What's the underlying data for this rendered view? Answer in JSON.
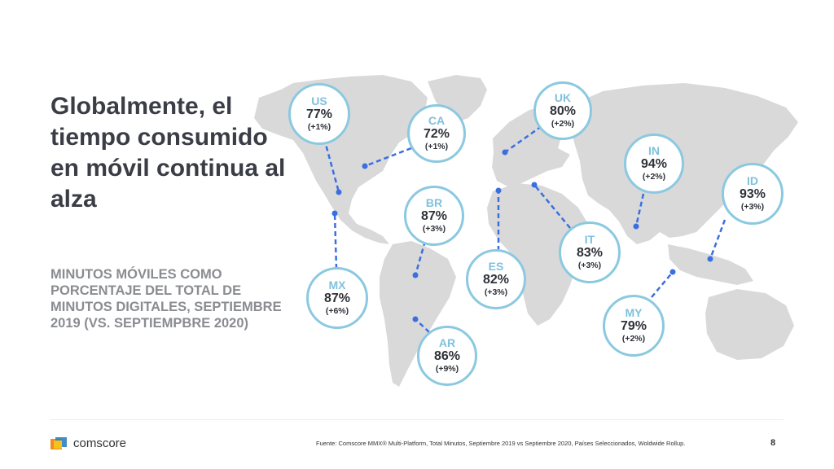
{
  "slide": {
    "title": "Globalmente, el tiempo consumido en móvil continua al alza",
    "subtitle": "MINUTOS MÓVILES COMO PORCENTAJE DEL TOTAL DE MINUTOS DIGITALES, SEPTIEMBRE 2019 (VS. SEPTIEMPBRE 2020)",
    "source": "Fuente: Comscore MMX® Multi-Platform, Total Minutos, Septiembre 2019 vs Septiembre 2020, Países Seleccionados, Woldwide Rollup.",
    "page_number": "8",
    "brand": "comscore"
  },
  "colors": {
    "map_land": "#d9d9d9",
    "bubble_border": "#8bc9e0",
    "connector": "#3b6fe0",
    "code_text": "#7fc1dd"
  },
  "countries": [
    {
      "code": "US",
      "pct": "77%",
      "change": "(+1%)"
    },
    {
      "code": "CA",
      "pct": "72%",
      "change": "(+1%)"
    },
    {
      "code": "UK",
      "pct": "80%",
      "change": "(+2%)"
    },
    {
      "code": "IN",
      "pct": "94%",
      "change": "(+2%)"
    },
    {
      "code": "ID",
      "pct": "93%",
      "change": "(+3%)"
    },
    {
      "code": "BR",
      "pct": "87%",
      "change": "(+3%)"
    },
    {
      "code": "IT",
      "pct": "83%",
      "change": "(+3%)"
    },
    {
      "code": "ES",
      "pct": "82%",
      "change": "(+3%)"
    },
    {
      "code": "MX",
      "pct": "87%",
      "change": "(+6%)"
    },
    {
      "code": "MY",
      "pct": "79%",
      "change": "(+2%)"
    },
    {
      "code": "AR",
      "pct": "86%",
      "change": "(+9%)"
    }
  ]
}
